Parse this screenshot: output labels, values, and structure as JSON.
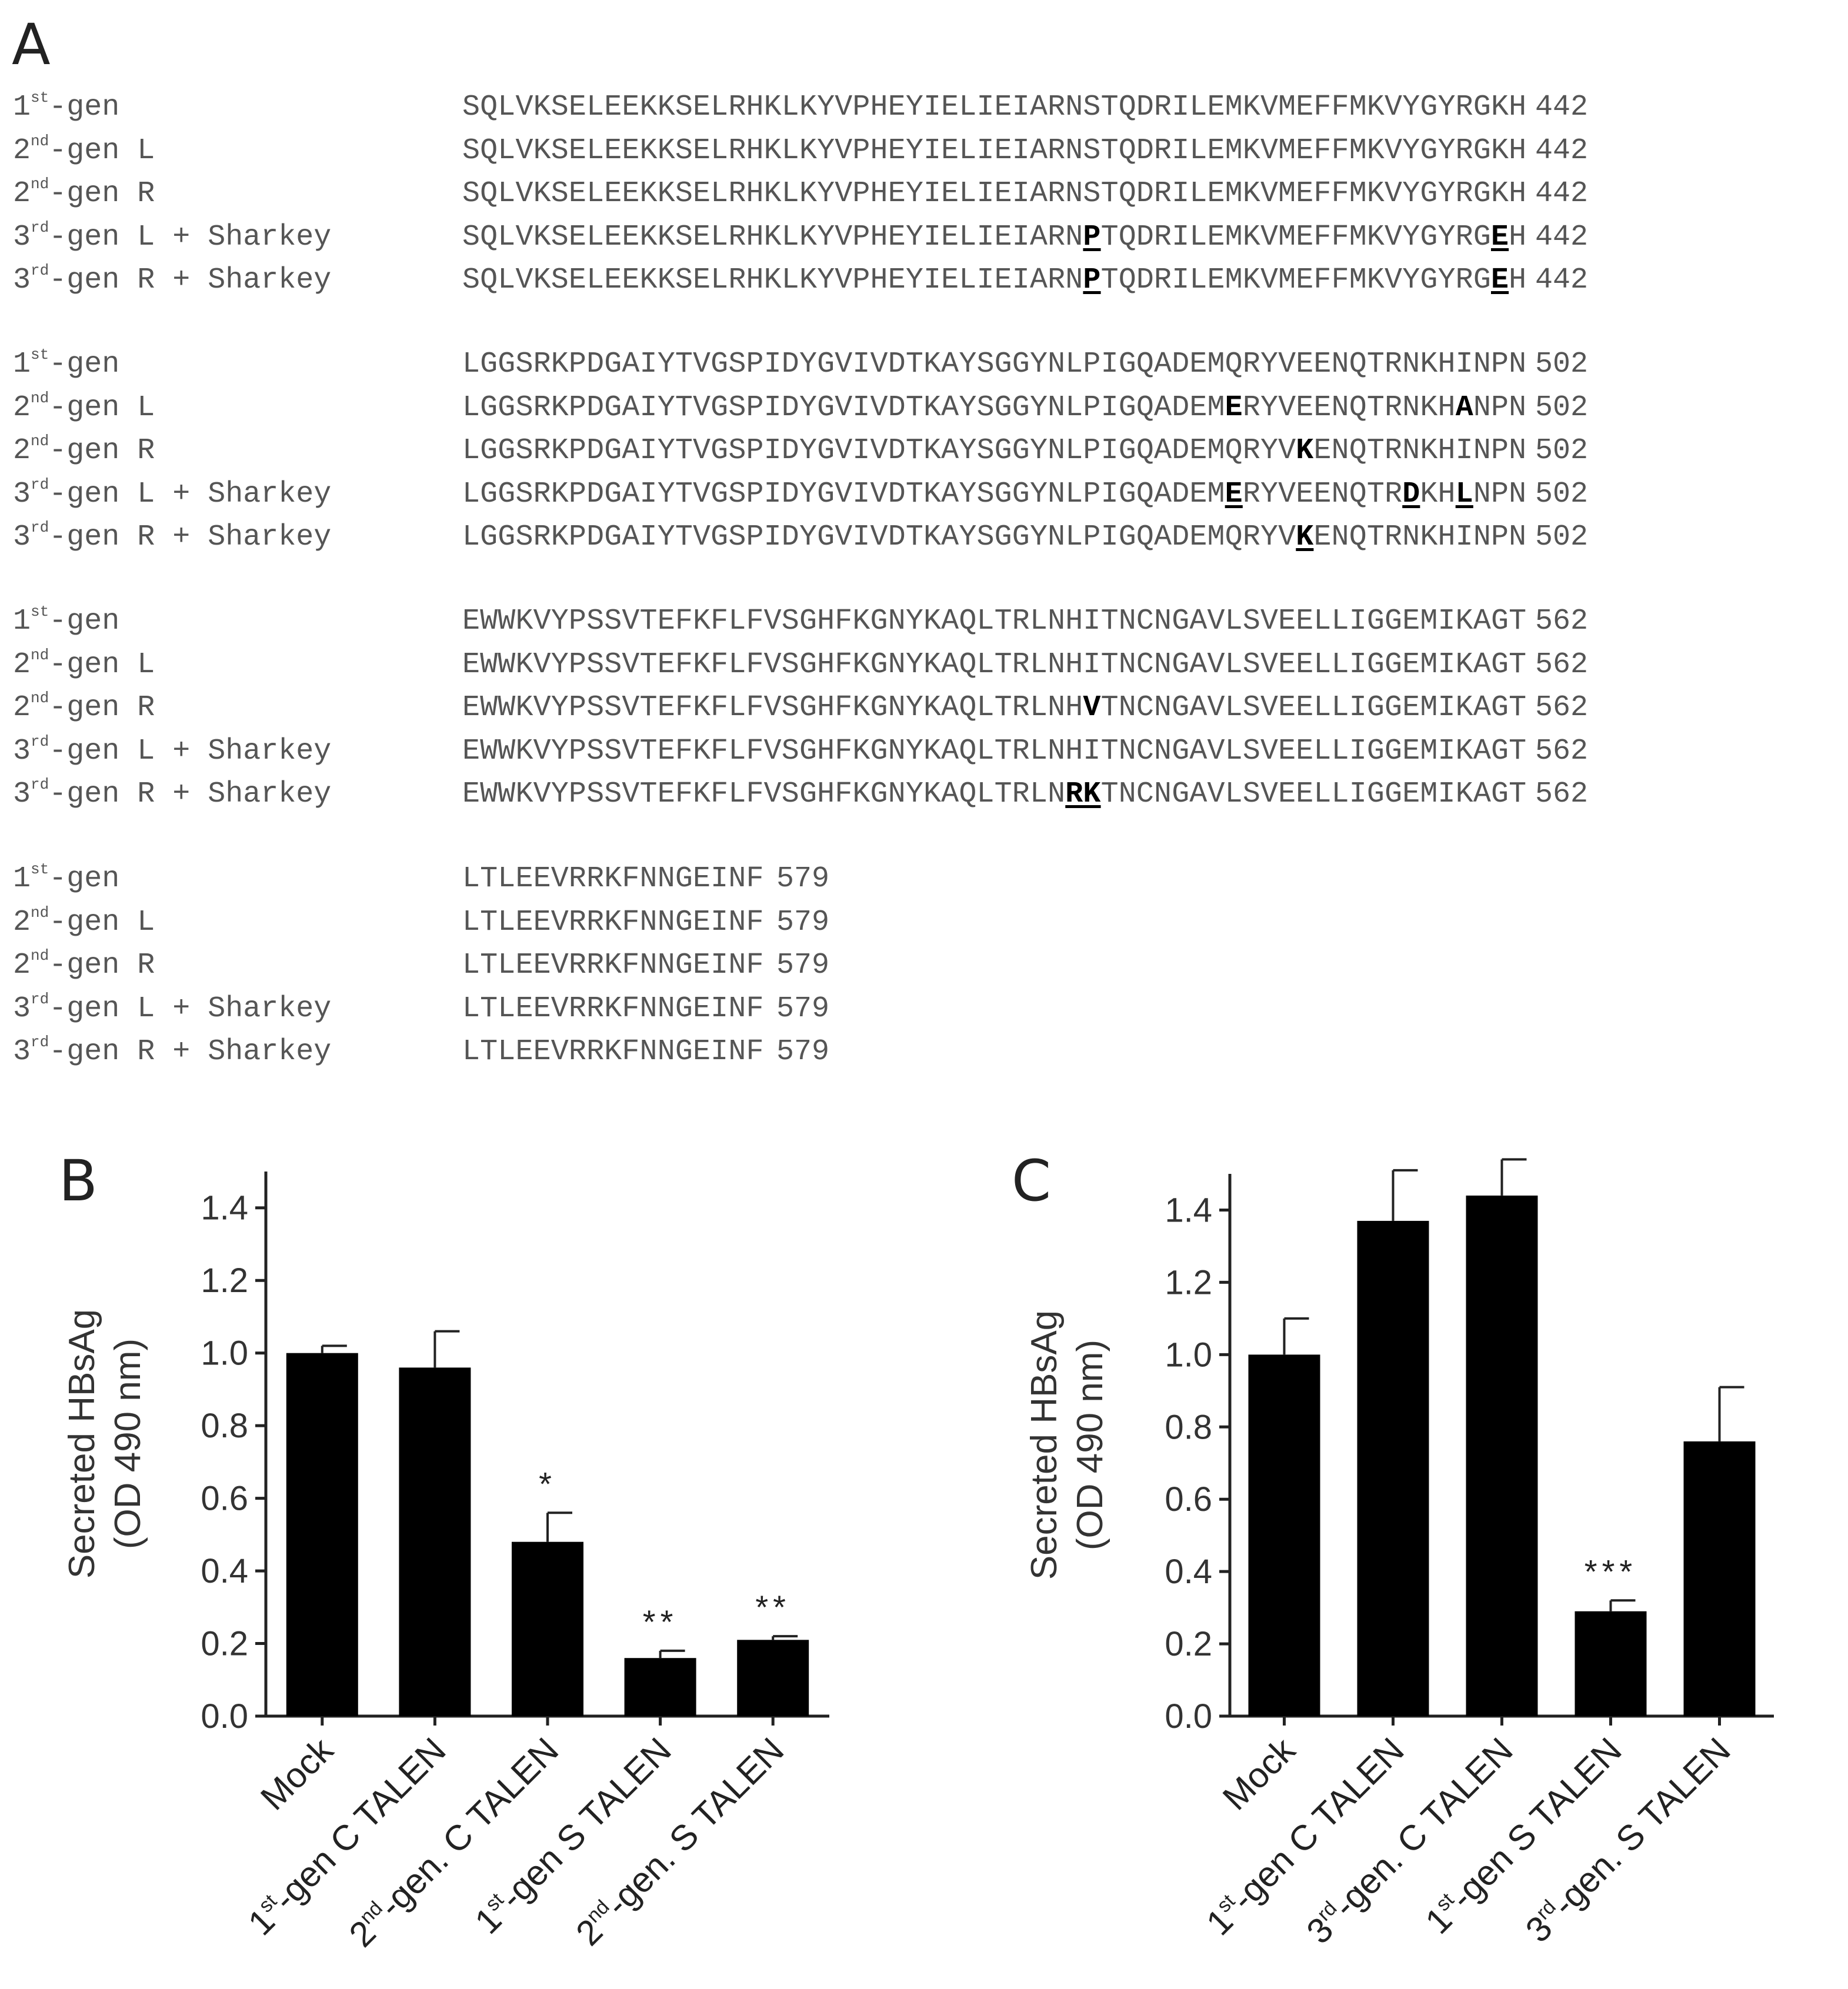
{
  "panel_a": {
    "letter": "A",
    "blocks": [
      {
        "end": "442",
        "rows": [
          {
            "prefix": "1",
            "sup": "st",
            "suffix": "-gen",
            "seq": "SQLVKSELEEKKSELRHKLKYVPHEYIELIEIARNSTQDRILEMKVMEFFMKVYGYRGKH"
          },
          {
            "prefix": "2",
            "sup": "nd",
            "suffix": "-gen L",
            "seq": "SQLVKSELEEKKSELRHKLKYVPHEYIELIEIARNSTQDRILEMKVMEFFMKVYGYRGKH"
          },
          {
            "prefix": "2",
            "sup": "nd",
            "suffix": "-gen R",
            "seq": "SQLVKSELEEKKSELRHKLKYVPHEYIELIEIARNSTQDRILEMKVMEFFMKVYGYRGKH"
          },
          {
            "prefix": "3",
            "sup": "rd",
            "suffix": "-gen L + Sharkey",
            "seq": "SQLVKSELEEKKSELRHKLKYVPHEYIELIEIARN[P]TQDRILEMKVMEFFMKVYGYRG[E]H"
          },
          {
            "prefix": "3",
            "sup": "rd",
            "suffix": "-gen R + Sharkey",
            "seq": "SQLVKSELEEKKSELRHKLKYVPHEYIELIEIARN[P]TQDRILEMKVMEFFMKVYGYRG[E]H"
          }
        ]
      },
      {
        "end": "502",
        "rows": [
          {
            "prefix": "1",
            "sup": "st",
            "suffix": "-gen",
            "seq": "LGGSRKPDGAIYTVGSPIDYGVIVDTKAYSGGYNLPIGQADEMQRYVEENQTRNKHINPN"
          },
          {
            "prefix": "2",
            "sup": "nd",
            "suffix": "-gen L",
            "seq": "LGGSRKPDGAIYTVGSPIDYGVIVDTKAYSGGYNLPIGQADEM{E}RYVEENQTRNKH{A}NPN"
          },
          {
            "prefix": "2",
            "sup": "nd",
            "suffix": "-gen R",
            "seq": "LGGSRKPDGAIYTVGSPIDYGVIVDTKAYSGGYNLPIGQADEMQRYV{K}ENQTRNKHINPN"
          },
          {
            "prefix": "3",
            "sup": "rd",
            "suffix": "-gen L + Sharkey",
            "seq": "LGGSRKPDGAIYTVGSPIDYGVIVDTKAYSGGYNLPIGQADEM[E]RYVEENQTR[D]KH[L]NPN"
          },
          {
            "prefix": "3",
            "sup": "rd",
            "suffix": "-gen R + Sharkey",
            "seq": "LGGSRKPDGAIYTVGSPIDYGVIVDTKAYSGGYNLPIGQADEMQRYV[K]ENQTRNKHINPN"
          }
        ]
      },
      {
        "end": "562",
        "rows": [
          {
            "prefix": "1",
            "sup": "st",
            "suffix": "-gen",
            "seq": "EWWKVYPSSVTEFKFLFVSGHFKGNYKAQLTRLNHITNCNGAVLSVEELLIGGEMIKAGT"
          },
          {
            "prefix": "2",
            "sup": "nd",
            "suffix": "-gen L",
            "seq": "EWWKVYPSSVTEFKFLFVSGHFKGNYKAQLTRLNHITNCNGAVLSVEELLIGGEMIKAGT"
          },
          {
            "prefix": "2",
            "sup": "nd",
            "suffix": "-gen R",
            "seq": "EWWKVYPSSVTEFKFLFVSGHFKGNYKAQLTRLNH{V}TNCNGAVLSVEELLIGGEMIKAGT"
          },
          {
            "prefix": "3",
            "sup": "rd",
            "suffix": "-gen L + Sharkey",
            "seq": "EWWKVYPSSVTEFKFLFVSGHFKGNYKAQLTRLNHITNCNGAVLSVEELLIGGEMIKAGT"
          },
          {
            "prefix": "3",
            "sup": "rd",
            "suffix": "-gen R + Sharkey",
            "seq": "EWWKVYPSSVTEFKFLFVSGHFKGNYKAQLTRLN[RK]TNCNGAVLSVEELLIGGEMIKAGT"
          }
        ]
      },
      {
        "end": "579",
        "rows": [
          {
            "prefix": "1",
            "sup": "st",
            "suffix": "-gen",
            "seq": "LTLEEVRRKFNNGEINF"
          },
          {
            "prefix": "2",
            "sup": "nd",
            "suffix": "-gen L",
            "seq": "LTLEEVRRKFNNGEINF"
          },
          {
            "prefix": "2",
            "sup": "nd",
            "suffix": "-gen R",
            "seq": "LTLEEVRRKFNNGEINF"
          },
          {
            "prefix": "3",
            "sup": "rd",
            "suffix": "-gen L + Sharkey",
            "seq": "LTLEEVRRKFNNGEINF"
          },
          {
            "prefix": "3",
            "sup": "rd",
            "suffix": "-gen R + Sharkey",
            "seq": "LTLEEVRRKFNNGEINF"
          }
        ]
      }
    ]
  },
  "chart_data": [
    {
      "panel": "B",
      "type": "bar",
      "ylabel_line1": "Secreted HBsAg",
      "ylabel_line2": "(OD 490 nm)",
      "ylim": [
        0,
        1.5
      ],
      "yticks": [
        "0.0",
        "0.2",
        "0.4",
        "0.6",
        "0.8",
        "1.0",
        "1.2",
        "1.4"
      ],
      "categories": [
        {
          "prefix": "",
          "sup": "",
          "suffix": "Mock"
        },
        {
          "prefix": "1",
          "sup": "st",
          "suffix": "-gen C TALEN"
        },
        {
          "prefix": "2",
          "sup": "nd",
          "suffix": "-gen. C TALEN"
        },
        {
          "prefix": "1",
          "sup": "st",
          "suffix": "-gen S TALEN"
        },
        {
          "prefix": "2",
          "sup": "nd",
          "suffix": "-gen. S TALEN"
        }
      ],
      "values": [
        1.0,
        0.96,
        0.48,
        0.16,
        0.21
      ],
      "errors": [
        0.02,
        0.1,
        0.08,
        0.02,
        0.01
      ],
      "significance": [
        "",
        "",
        "*",
        "**",
        "**"
      ],
      "bar_color": "#000000"
    },
    {
      "panel": "C",
      "type": "bar",
      "ylabel_line1": "Secreted HBsAg",
      "ylabel_line2": "(OD 490 nm)",
      "ylim": [
        0,
        1.5
      ],
      "yticks": [
        "0.0",
        "0.2",
        "0.4",
        "0.6",
        "0.8",
        "1.0",
        "1.2",
        "1.4"
      ],
      "categories": [
        {
          "prefix": "",
          "sup": "",
          "suffix": "Mock"
        },
        {
          "prefix": "1",
          "sup": "st",
          "suffix": "-gen C TALEN"
        },
        {
          "prefix": "3",
          "sup": "rd",
          "suffix": "-gen. C TALEN"
        },
        {
          "prefix": "1",
          "sup": "st",
          "suffix": "-gen S TALEN"
        },
        {
          "prefix": "3",
          "sup": "rd",
          "suffix": "-gen. S TALEN"
        }
      ],
      "values": [
        1.0,
        1.37,
        1.44,
        0.29,
        0.76
      ],
      "errors": [
        0.1,
        0.14,
        0.1,
        0.03,
        0.15
      ],
      "significance": [
        "",
        "",
        "",
        "***",
        ""
      ],
      "bar_color": "#000000"
    }
  ]
}
